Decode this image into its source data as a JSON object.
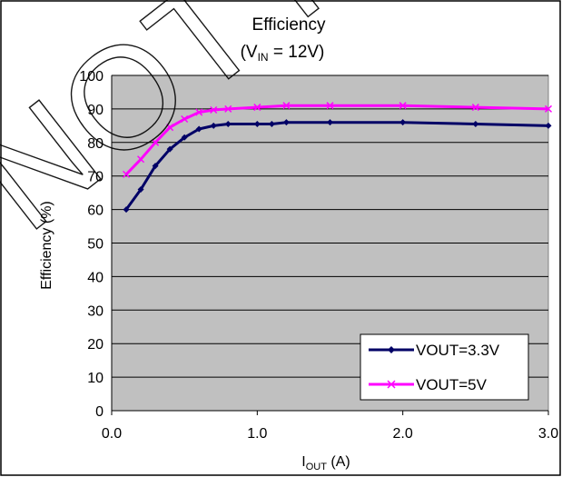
{
  "chart_data": {
    "type": "line",
    "title": "Efficiency",
    "subtitle_parts": {
      "prefix": "(V",
      "sub": "IN",
      "suffix": " = 12V)"
    },
    "xlabel_parts": {
      "main": "I",
      "sub": "OUT",
      "suffix": " (A)"
    },
    "ylabel": "Efficiency (%)",
    "xlim": [
      0,
      3.0
    ],
    "ylim": [
      0,
      100
    ],
    "x_ticks": [
      "0.0",
      "1.0",
      "2.0",
      "3.0"
    ],
    "y_ticks": [
      "0",
      "10",
      "20",
      "30",
      "40",
      "50",
      "60",
      "70",
      "80",
      "90",
      "100"
    ],
    "grid": true,
    "legend_position": "bottom-right",
    "series": [
      {
        "name": "VOUT=3.3V",
        "color": "#000066",
        "marker": "diamond",
        "points": [
          [
            0.1,
            60
          ],
          [
            0.2,
            66
          ],
          [
            0.3,
            73
          ],
          [
            0.4,
            78
          ],
          [
            0.5,
            81.5
          ],
          [
            0.6,
            84
          ],
          [
            0.7,
            85
          ],
          [
            0.8,
            85.5
          ],
          [
            1.0,
            85.5
          ],
          [
            1.1,
            85.5
          ],
          [
            1.2,
            86
          ],
          [
            1.5,
            86
          ],
          [
            2.0,
            86
          ],
          [
            2.5,
            85.5
          ],
          [
            3.0,
            85
          ]
        ]
      },
      {
        "name": "VOUT=5V",
        "color": "#FF00FF",
        "marker": "cross",
        "points": [
          [
            0.1,
            70.5
          ],
          [
            0.2,
            75
          ],
          [
            0.3,
            80
          ],
          [
            0.4,
            84.5
          ],
          [
            0.5,
            87
          ],
          [
            0.6,
            89
          ],
          [
            0.7,
            89.7
          ],
          [
            0.8,
            90
          ],
          [
            1.0,
            90.5
          ],
          [
            1.2,
            91
          ],
          [
            1.5,
            91
          ],
          [
            2.0,
            91
          ],
          [
            2.5,
            90.5
          ],
          [
            3.0,
            90
          ]
        ]
      }
    ]
  },
  "watermark": "NOT FOR NEW"
}
